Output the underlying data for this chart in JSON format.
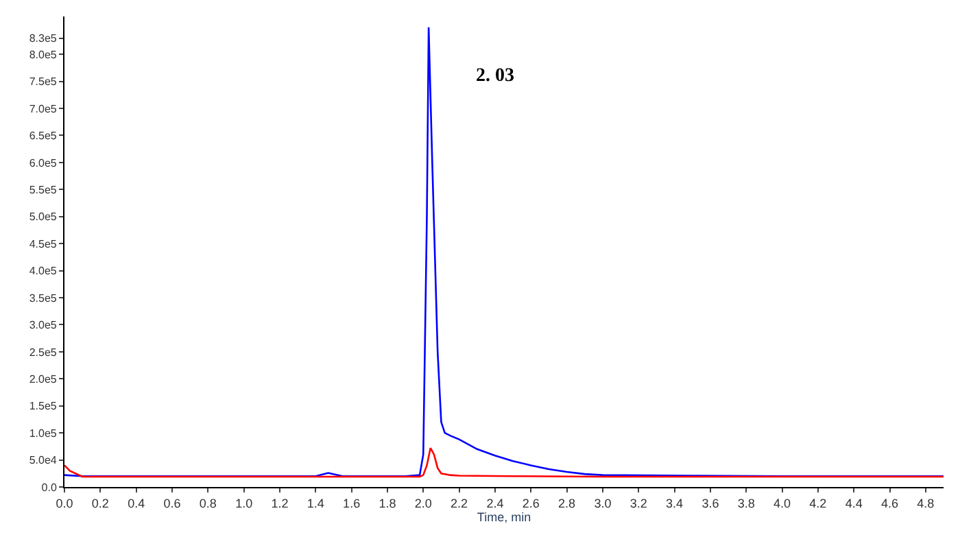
{
  "chart_data": {
    "type": "line",
    "xlabel": "Time, min",
    "annotations": [
      "2. 03"
    ],
    "xlim": [
      0,
      4.9
    ],
    "ylim": [
      0,
      870000
    ],
    "xticks": [
      {
        "value": 0,
        "label": "0.0"
      },
      {
        "value": 0.2,
        "label": "0.2"
      },
      {
        "value": 0.4,
        "label": "0.4"
      },
      {
        "value": 0.6,
        "label": "0.6"
      },
      {
        "value": 0.8,
        "label": "0.8"
      },
      {
        "value": 1,
        "label": "1.0"
      },
      {
        "value": 1.2,
        "label": "1.2"
      },
      {
        "value": 1.4,
        "label": "1.4"
      },
      {
        "value": 1.6,
        "label": "1.6"
      },
      {
        "value": 1.8,
        "label": "1.8"
      },
      {
        "value": 2,
        "label": "2.0"
      },
      {
        "value": 2.2,
        "label": "2.2"
      },
      {
        "value": 2.4,
        "label": "2.4"
      },
      {
        "value": 2.6,
        "label": "2.6"
      },
      {
        "value": 2.8,
        "label": "2.8"
      },
      {
        "value": 3,
        "label": "3.0"
      },
      {
        "value": 3.2,
        "label": "3.2"
      },
      {
        "value": 3.4,
        "label": "3.4"
      },
      {
        "value": 3.6,
        "label": "3.6"
      },
      {
        "value": 3.8,
        "label": "3.8"
      },
      {
        "value": 4,
        "label": "4.0"
      },
      {
        "value": 4.2,
        "label": "4.2"
      },
      {
        "value": 4.4,
        "label": "4.4"
      },
      {
        "value": 4.6,
        "label": "4.6"
      },
      {
        "value": 4.8,
        "label": "4.8"
      }
    ],
    "yticks": [
      {
        "value": 0,
        "label": "0.0"
      },
      {
        "value": 50000,
        "label": "5.0e4"
      },
      {
        "value": 100000,
        "label": "1.0e5"
      },
      {
        "value": 150000,
        "label": "1.5e5"
      },
      {
        "value": 200000,
        "label": "2.0e5"
      },
      {
        "value": 250000,
        "label": "2.5e5"
      },
      {
        "value": 300000,
        "label": "3.0e5"
      },
      {
        "value": 350000,
        "label": "3.5e5"
      },
      {
        "value": 400000,
        "label": "4.0e5"
      },
      {
        "value": 450000,
        "label": "4.5e5"
      },
      {
        "value": 500000,
        "label": "5.0e5"
      },
      {
        "value": 550000,
        "label": "5.5e5"
      },
      {
        "value": 600000,
        "label": "6.0e5"
      },
      {
        "value": 650000,
        "label": "6.5e5"
      },
      {
        "value": 700000,
        "label": "7.0e5"
      },
      {
        "value": 750000,
        "label": "7.5e5"
      },
      {
        "value": 800000,
        "label": "8.0e5"
      },
      {
        "value": 830000,
        "label": "8.3e5"
      }
    ],
    "marker": "none",
    "line_style": "solid",
    "series": [
      {
        "color": "#0000ff",
        "x": [
          0,
          0.1,
          0.5,
          1.0,
          1.4,
          1.47,
          1.55,
          1.9,
          1.98,
          2.0,
          2.02,
          2.03,
          2.05,
          2.08,
          2.1,
          2.12,
          2.15,
          2.2,
          2.3,
          2.4,
          2.5,
          2.6,
          2.7,
          2.8,
          2.9,
          3.0,
          3.5,
          4.0,
          4.5,
          4.9
        ],
        "values": [
          22000,
          20000,
          20000,
          20000,
          20000,
          26000,
          20000,
          20000,
          22000,
          60000,
          500000,
          850000,
          600000,
          250000,
          120000,
          100000,
          95000,
          88000,
          70000,
          58000,
          48000,
          40000,
          33000,
          28000,
          24000,
          22000,
          21000,
          20000,
          20000,
          20000
        ]
      },
      {
        "color": "#ff0000",
        "x": [
          0,
          0.03,
          0.1,
          0.5,
          1.0,
          1.5,
          1.98,
          2.0,
          2.02,
          2.04,
          2.06,
          2.08,
          2.1,
          2.15,
          2.2,
          2.5,
          3.0,
          3.5,
          4.0,
          4.5,
          4.9
        ],
        "values": [
          40000,
          30000,
          19000,
          19000,
          19000,
          19000,
          19000,
          22000,
          40000,
          72000,
          60000,
          35000,
          25000,
          22000,
          21000,
          20000,
          19000,
          19000,
          19000,
          19000,
          19000
        ]
      }
    ]
  }
}
